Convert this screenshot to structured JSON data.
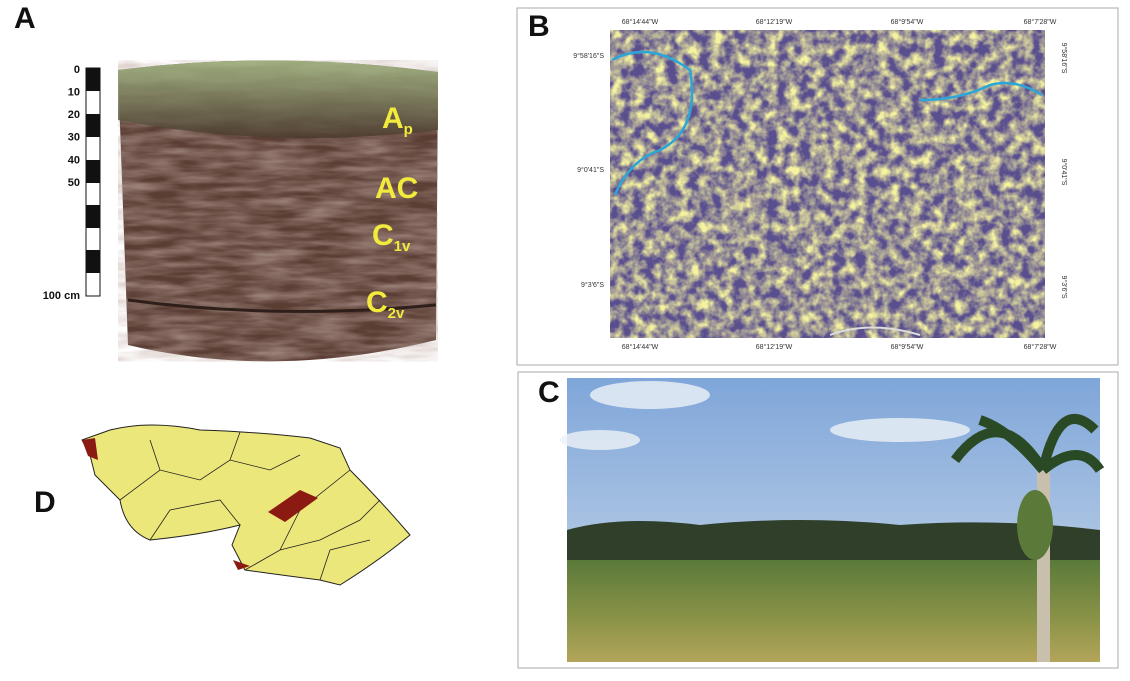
{
  "panels": {
    "a": {
      "label": "A",
      "scale": [
        "0",
        "10",
        "20",
        "30",
        "40",
        "50"
      ],
      "scale_unit": "100 cm",
      "horizons": [
        {
          "main": "A",
          "sub": "p"
        },
        {
          "main": "AC",
          "sub": ""
        },
        {
          "main": "C",
          "sub": "1v"
        },
        {
          "main": "C",
          "sub": "2v"
        }
      ]
    },
    "b": {
      "label": "B",
      "lon_labels": [
        "68°14'44\"W",
        "68°12'19\"W",
        "68°9'54\"W",
        "68°7'28\"W"
      ],
      "lat_labels": [
        "9°58'16\"S",
        "9°0'41\"S",
        "9°3'6\"S"
      ]
    },
    "c": {
      "label": "C"
    },
    "d": {
      "label": "D"
    }
  }
}
